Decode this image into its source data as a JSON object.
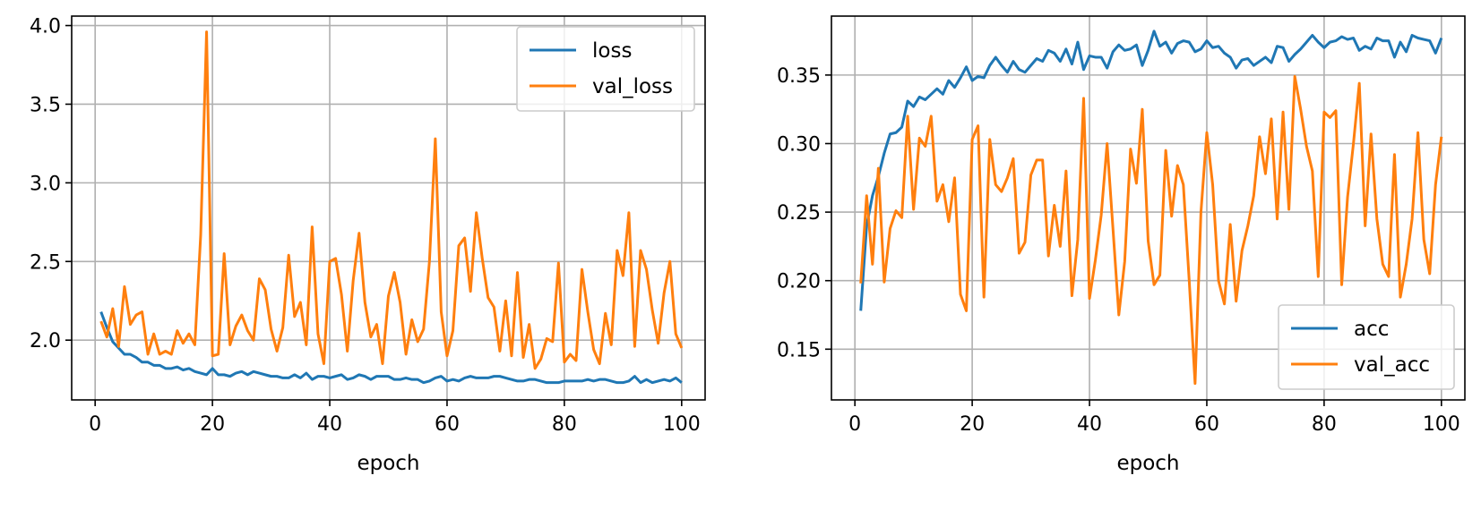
{
  "colors": {
    "blue": "#1f77b4",
    "orange": "#ff7f0e"
  },
  "chart_data": [
    {
      "type": "line",
      "xlabel": "epoch",
      "ylabel": "",
      "xlim": [
        -4,
        104
      ],
      "ylim": [
        1.62,
        4.06
      ],
      "xticks": [
        0,
        20,
        40,
        60,
        80,
        100
      ],
      "yticks": [
        2.0,
        2.5,
        3.0,
        3.5,
        4.0
      ],
      "ytick_labels": [
        "2.0",
        "2.5",
        "3.0",
        "3.5",
        "4.0"
      ],
      "grid": true,
      "legend": "top-right",
      "x_start": 1,
      "series": [
        {
          "name": "loss",
          "color": "#1f77b4",
          "values": [
            2.18,
            2.08,
            1.99,
            1.95,
            1.91,
            1.91,
            1.89,
            1.86,
            1.86,
            1.84,
            1.84,
            1.82,
            1.82,
            1.83,
            1.81,
            1.82,
            1.8,
            1.79,
            1.78,
            1.82,
            1.78,
            1.78,
            1.77,
            1.79,
            1.8,
            1.78,
            1.8,
            1.79,
            1.78,
            1.77,
            1.77,
            1.76,
            1.76,
            1.78,
            1.76,
            1.79,
            1.75,
            1.77,
            1.77,
            1.76,
            1.77,
            1.78,
            1.75,
            1.76,
            1.78,
            1.77,
            1.75,
            1.77,
            1.77,
            1.77,
            1.75,
            1.75,
            1.76,
            1.75,
            1.75,
            1.73,
            1.74,
            1.76,
            1.77,
            1.74,
            1.75,
            1.74,
            1.76,
            1.77,
            1.76,
            1.76,
            1.76,
            1.77,
            1.77,
            1.76,
            1.75,
            1.74,
            1.74,
            1.75,
            1.75,
            1.74,
            1.73,
            1.73,
            1.73,
            1.74,
            1.74,
            1.74,
            1.74,
            1.75,
            1.74,
            1.75,
            1.75,
            1.74,
            1.73,
            1.73,
            1.74,
            1.77,
            1.73,
            1.75,
            1.73,
            1.74,
            1.75,
            1.74,
            1.76,
            1.73
          ]
        },
        {
          "name": "val_loss",
          "color": "#ff7f0e",
          "values": [
            2.12,
            2.02,
            2.2,
            1.96,
            2.34,
            2.1,
            2.16,
            2.18,
            1.91,
            2.04,
            1.91,
            1.93,
            1.91,
            2.06,
            1.98,
            2.04,
            1.97,
            2.67,
            3.96,
            1.9,
            1.91,
            2.55,
            1.97,
            2.09,
            2.16,
            2.06,
            2.0,
            2.39,
            2.32,
            2.07,
            1.93,
            2.08,
            2.54,
            2.15,
            2.24,
            1.97,
            2.72,
            2.04,
            1.85,
            2.5,
            2.52,
            2.29,
            1.93,
            2.38,
            2.68,
            2.24,
            2.02,
            2.1,
            1.85,
            2.28,
            2.43,
            2.24,
            1.91,
            2.13,
            1.99,
            2.07,
            2.5,
            3.28,
            2.18,
            1.9,
            2.06,
            2.6,
            2.65,
            2.31,
            2.81,
            2.52,
            2.27,
            2.21,
            1.93,
            2.25,
            1.9,
            2.43,
            1.89,
            2.1,
            1.82,
            1.88,
            2.01,
            1.99,
            2.49,
            1.86,
            1.91,
            1.87,
            2.45,
            2.18,
            1.94,
            1.85,
            2.17,
            1.97,
            2.57,
            2.41,
            2.81,
            1.96,
            2.57,
            2.45,
            2.19,
            1.98,
            2.3,
            2.5,
            2.04,
            1.95
          ]
        }
      ]
    },
    {
      "type": "line",
      "xlabel": "epoch",
      "ylabel": "",
      "xlim": [
        -4,
        104
      ],
      "ylim": [
        0.113,
        0.393
      ],
      "xticks": [
        0,
        20,
        40,
        60,
        80,
        100
      ],
      "yticks": [
        0.15,
        0.2,
        0.25,
        0.3,
        0.35
      ],
      "ytick_labels": [
        "0.15",
        "0.20",
        "0.25",
        "0.30",
        "0.35"
      ],
      "grid": true,
      "legend": "bottom-right",
      "x_start": 1,
      "series": [
        {
          "name": "acc",
          "color": "#1f77b4",
          "values": [
            0.178,
            0.24,
            0.262,
            0.276,
            0.293,
            0.307,
            0.308,
            0.312,
            0.331,
            0.327,
            0.334,
            0.332,
            0.336,
            0.34,
            0.336,
            0.346,
            0.341,
            0.348,
            0.356,
            0.346,
            0.349,
            0.348,
            0.357,
            0.363,
            0.357,
            0.352,
            0.36,
            0.354,
            0.352,
            0.357,
            0.362,
            0.36,
            0.368,
            0.366,
            0.36,
            0.369,
            0.358,
            0.374,
            0.354,
            0.364,
            0.363,
            0.363,
            0.355,
            0.367,
            0.372,
            0.368,
            0.369,
            0.372,
            0.357,
            0.368,
            0.382,
            0.371,
            0.374,
            0.366,
            0.373,
            0.375,
            0.374,
            0.367,
            0.369,
            0.375,
            0.37,
            0.371,
            0.366,
            0.363,
            0.355,
            0.361,
            0.362,
            0.357,
            0.36,
            0.363,
            0.359,
            0.371,
            0.37,
            0.36,
            0.365,
            0.369,
            0.374,
            0.379,
            0.374,
            0.37,
            0.374,
            0.375,
            0.378,
            0.376,
            0.377,
            0.368,
            0.371,
            0.369,
            0.377,
            0.375,
            0.375,
            0.363,
            0.374,
            0.367,
            0.379,
            0.377,
            0.376,
            0.375,
            0.366,
            0.377
          ]
        },
        {
          "name": "val_acc",
          "color": "#ff7f0e",
          "values": [
            0.198,
            0.262,
            0.212,
            0.282,
            0.199,
            0.238,
            0.251,
            0.246,
            0.32,
            0.252,
            0.304,
            0.298,
            0.32,
            0.258,
            0.27,
            0.243,
            0.275,
            0.19,
            0.178,
            0.303,
            0.313,
            0.188,
            0.303,
            0.27,
            0.265,
            0.275,
            0.289,
            0.22,
            0.228,
            0.277,
            0.288,
            0.288,
            0.218,
            0.255,
            0.225,
            0.28,
            0.189,
            0.23,
            0.333,
            0.187,
            0.215,
            0.248,
            0.3,
            0.238,
            0.175,
            0.214,
            0.296,
            0.271,
            0.325,
            0.229,
            0.197,
            0.204,
            0.295,
            0.247,
            0.284,
            0.27,
            0.2,
            0.125,
            0.25,
            0.308,
            0.27,
            0.2,
            0.183,
            0.241,
            0.185,
            0.222,
            0.24,
            0.262,
            0.305,
            0.278,
            0.318,
            0.245,
            0.323,
            0.252,
            0.349,
            0.325,
            0.298,
            0.28,
            0.203,
            0.323,
            0.319,
            0.324,
            0.197,
            0.261,
            0.3,
            0.344,
            0.24,
            0.307,
            0.245,
            0.212,
            0.203,
            0.292,
            0.188,
            0.212,
            0.245,
            0.308,
            0.23,
            0.205,
            0.27,
            0.305
          ]
        }
      ]
    }
  ]
}
